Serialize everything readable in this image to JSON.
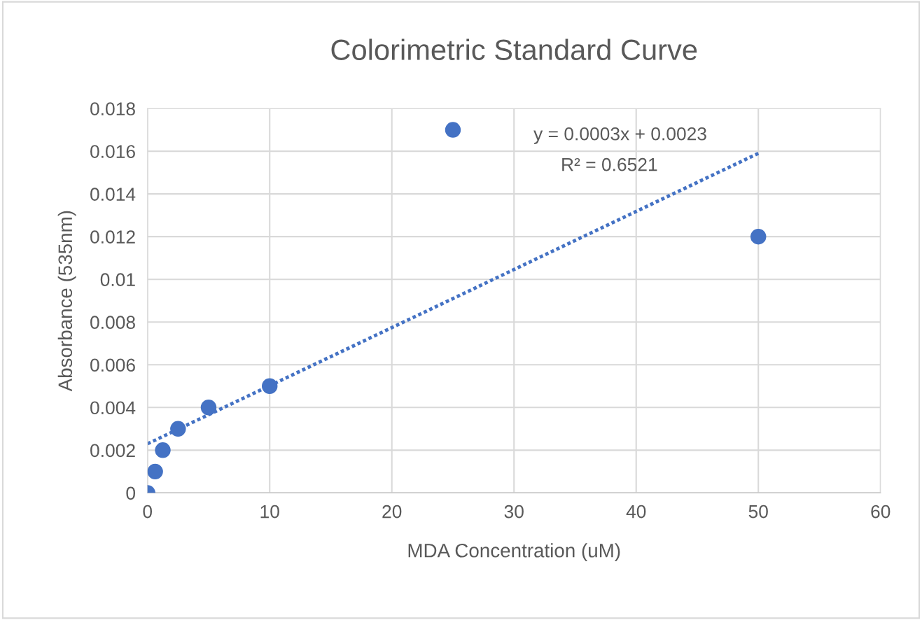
{
  "chart_data": {
    "type": "scatter",
    "title": "Colorimetric Standard Curve",
    "xlabel": "MDA Concentration (uM)",
    "ylabel": "Absorbance (535nm)",
    "series": [
      {
        "color": "#4472c4",
        "x": [
          0,
          0.625,
          1.25,
          2.5,
          5,
          10,
          25,
          50
        ],
        "values": [
          0,
          0.001,
          0.002,
          0.003,
          0.004,
          0.005,
          0.017,
          0.012
        ],
        "marker": "circle"
      },
      {
        "type": "line",
        "color": "#4472c4",
        "x": [
          0,
          50
        ],
        "values": [
          0.0023,
          0.0159
        ],
        "line_style": "dotted",
        "marker": "none"
      }
    ],
    "annotations": [
      "y = 0.0003x + 0.0023",
      "R² = 0.6521"
    ],
    "xlim": [
      0,
      60
    ],
    "xticks": [
      0,
      10,
      20,
      30,
      40,
      50,
      60
    ],
    "ylim": [
      0,
      0.018
    ],
    "yticks": [
      0,
      0.002,
      0.004,
      0.006,
      0.008,
      0.01,
      0.012,
      0.014,
      0.016,
      0.018
    ],
    "grid": true,
    "legend": false
  }
}
